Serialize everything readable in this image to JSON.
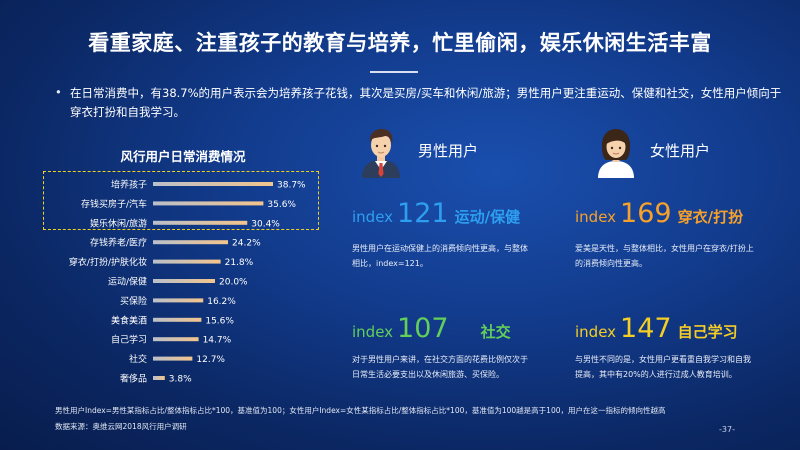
{
  "title": "看重家庭、注重孩子的教育与培养，忙里偷闲，娱乐休闲生活丰富",
  "summary": "在日常消费中，有38.7%的用户表示会为培养孩子花钱，其次是买房/买车和休闲/旅游；男性用户更注重运动、保健和社交，女性用户倾向于穿衣打扮和自我学习。",
  "chart_data": {
    "type": "bar",
    "orientation": "horizontal",
    "title": "风行用户日常消费情况",
    "unit": "%",
    "categories": [
      "培养孩子",
      "存钱买房子/汽车",
      "娱乐休闲/旅游",
      "存钱养老/医疗",
      "穿衣/打扮/护肤化妆",
      "运动/保健",
      "买保险",
      "美食美酒",
      "自己学习",
      "社交",
      "奢侈品"
    ],
    "values": [
      38.7,
      35.6,
      30.4,
      24.2,
      21.8,
      20.0,
      16.2,
      15.6,
      14.7,
      12.7,
      3.8
    ],
    "value_labels": [
      "38.7%",
      "35.6%",
      "30.4%",
      "24.2%",
      "21.8%",
      "20.0%",
      "16.2%",
      "15.6%",
      "14.7%",
      "12.7%",
      "3.8%"
    ],
    "xlim": [
      0,
      38.7
    ],
    "grid": false,
    "highlighted_categories": [
      "培养孩子",
      "存钱买房子/汽车",
      "娱乐休闲/旅游"
    ],
    "bar_colors": {
      "start": "#b9c0ca",
      "end": "#f3c48c"
    }
  },
  "male": {
    "label": "男性用户",
    "avatar_icon": "male-user-icon",
    "items": [
      {
        "word": "index",
        "value": "121",
        "topic": "运动/保健",
        "color": "#2e9ff0",
        "desc_lines": [
          "男性用户在运动保健上的消费倾向性更高，与整体",
          "相比，index=121。"
        ]
      },
      {
        "word": "index",
        "value": "107",
        "topic": "社交",
        "color": "#63cf5a",
        "desc_lines": [
          "对于男性用户来讲，在社交方面的花费比例仅次于",
          "日常生活必要支出以及休闲旅游、买保险。"
        ]
      }
    ]
  },
  "female": {
    "label": "女性用户",
    "avatar_icon": "female-user-icon",
    "items": [
      {
        "word": "index",
        "value": "169",
        "topic": "穿衣/打扮",
        "color": "#f7a12b",
        "desc_lines": [
          "爱美是天性，与整体相比，女性用户在穿衣/打扮上",
          "的消费倾向性更高。"
        ]
      },
      {
        "word": "index",
        "value": "147",
        "topic": "自己学习",
        "color": "#f5ce25",
        "desc_lines": [
          "与男性不同的是，女性用户更看重自我学习和自我",
          "提高，其中有20%的人进行过成人教育培训。"
        ]
      }
    ]
  },
  "footnote": "男性用户Index=男性某指标占比/整体指标占比*100，基准值为100；女性用户Index=女性某指标占比/整体指标占比*100，基准值为100越是高于100，用户在这一指标的倾向性越高",
  "source": "数据来源：奥维云网2018风行用户调研",
  "page_number": "-37-",
  "colors": {
    "background": "#0b2763",
    "accent_blue": "#2e9ff0",
    "accent_orange": "#f7a12b",
    "accent_green": "#63cf5a",
    "accent_yellow": "#f5ce25",
    "highlight_border": "#f2d21f"
  }
}
